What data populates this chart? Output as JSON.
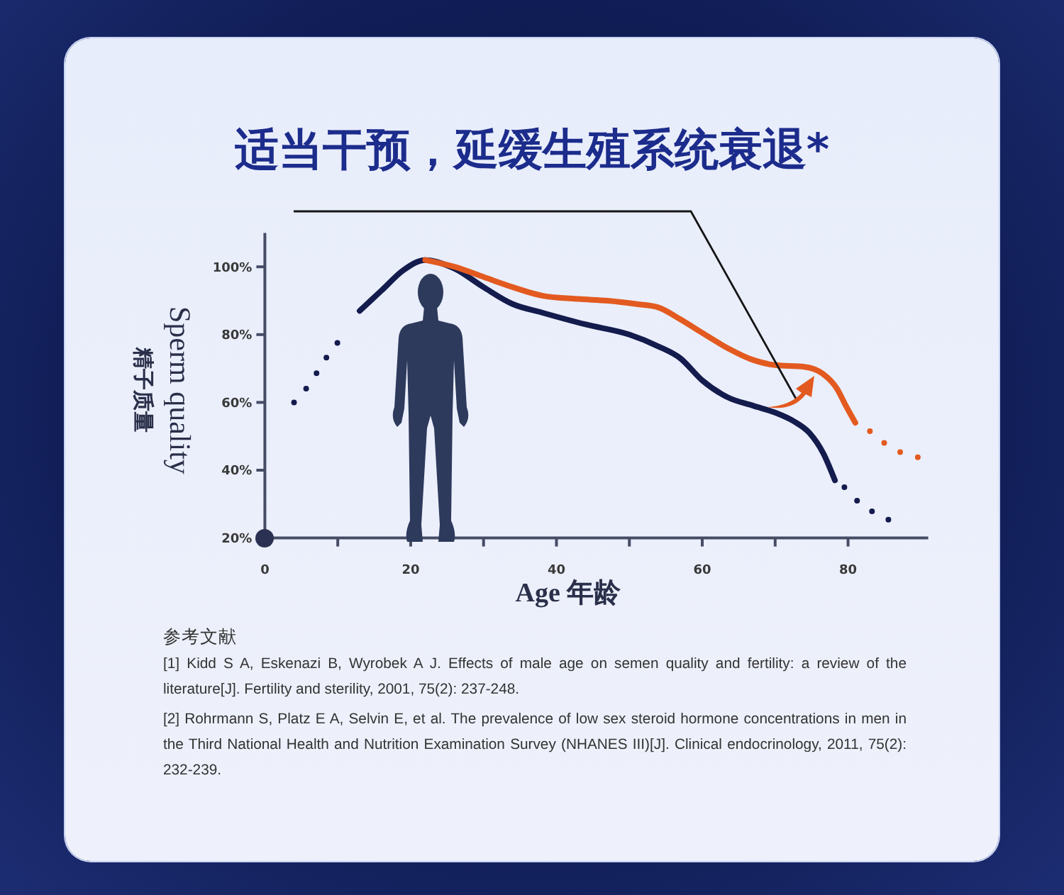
{
  "chart_data": {
    "type": "line",
    "title": "适当干预，延缓生殖系统衰退*",
    "xlabel": "Age 年龄",
    "ylabel": "Sperm quality\n精子质量",
    "xlim": [
      0,
      91
    ],
    "xticks": [
      0,
      {
        "value": 10,
        "label": null
      },
      20,
      {
        "value": 30,
        "label": null
      },
      40,
      {
        "value": 50,
        "label": null
      },
      60,
      {
        "value": 70,
        "label": null
      },
      80
    ],
    "ylim": [
      20,
      110
    ],
    "yticks": [
      {
        "value": 20,
        "label": "20%"
      },
      {
        "value": 40,
        "label": "40%"
      },
      {
        "value": 60,
        "label": "60%"
      },
      {
        "value": 80,
        "label": "80%"
      },
      {
        "value": 100,
        "label": "100%"
      }
    ],
    "series": [
      {
        "color": "#141b4d",
        "line_style": "dotted",
        "x": [
          4,
          6,
          7.5,
          9,
          11
        ],
        "values": [
          60,
          65,
          70,
          75,
          80
        ]
      },
      {
        "color": "#141b4d",
        "line_style": "solid",
        "x": [
          13,
          16,
          19,
          22,
          26,
          30,
          34,
          38,
          44,
          50,
          54,
          57,
          60,
          63.5,
          67,
          70,
          72.5,
          74.7,
          76.6,
          78.2
        ],
        "values": [
          87,
          93,
          99,
          102,
          99.5,
          94,
          89,
          86.5,
          83,
          80,
          76.5,
          73,
          66.5,
          61.5,
          59,
          57,
          54.5,
          51,
          45,
          37
        ]
      },
      {
        "color": "#141b4d",
        "line_style": "dotted",
        "x": [
          79.5,
          81.5,
          84,
          86.5
        ],
        "values": [
          35,
          30.5,
          27,
          24.5
        ]
      },
      {
        "color": "#e35a20",
        "line_style": "solid",
        "x": [
          22,
          26,
          30,
          34,
          38,
          43,
          47,
          51,
          54,
          57,
          60,
          63.5,
          67,
          70,
          74,
          76.5,
          78.5,
          79.7,
          81
        ],
        "values": [
          102,
          100,
          97,
          94,
          91.5,
          90.5,
          90,
          89,
          88,
          84.5,
          80.5,
          76,
          72.5,
          71,
          70.5,
          68.5,
          64,
          59,
          54
        ]
      },
      {
        "color": "#e35a20",
        "line_style": "dotted",
        "x": [
          83,
          85,
          87.5,
          90.5
        ],
        "values": [
          51.5,
          48,
          45,
          43.5
        ]
      }
    ],
    "annotations": [
      "参考文献",
      "[1] Kidd S A, Eskenazi B, Wyrobek A J. Effects of male age on semen quality and fertility: a review of the literature[J]. Fertility and sterility, 2001, 75(2): 237-248.",
      "[2] Rohrmann S, Platz E A, Selvin E, et al. The prevalence of low sex steroid hormone concentrations in men in the Third National Health and Nutrition Examination Survey (NHANES III)[J]. Clinical endocrinology, 2011, 75(2): 232-239."
    ]
  }
}
